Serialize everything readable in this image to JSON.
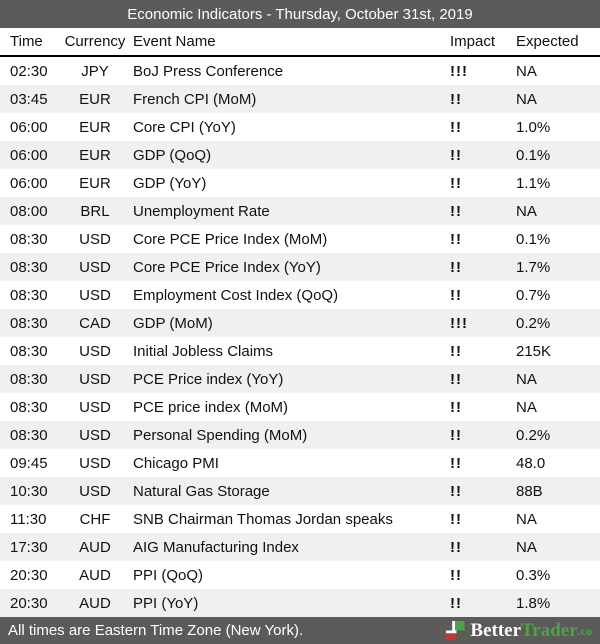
{
  "title_bar": {
    "title": "Economic Indicators - Thursday, October 31st, 2019"
  },
  "table": {
    "columns": [
      "Time",
      "Currency",
      "Event Name",
      "Impact",
      "Expected"
    ],
    "rows": [
      {
        "time": "02:30",
        "currency": "JPY",
        "event": "BoJ Press Conference",
        "impact": "!!!",
        "expected": "NA"
      },
      {
        "time": "03:45",
        "currency": "EUR",
        "event": "French CPI (MoM)",
        "impact": "!!",
        "expected": "NA"
      },
      {
        "time": "06:00",
        "currency": "EUR",
        "event": "Core CPI (YoY)",
        "impact": "!!",
        "expected": "1.0%"
      },
      {
        "time": "06:00",
        "currency": "EUR",
        "event": "GDP (QoQ)",
        "impact": "!!",
        "expected": "0.1%"
      },
      {
        "time": "06:00",
        "currency": "EUR",
        "event": "GDP (YoY)",
        "impact": "!!",
        "expected": "1.1%"
      },
      {
        "time": "08:00",
        "currency": "BRL",
        "event": "Unemployment Rate",
        "impact": "!!",
        "expected": "NA"
      },
      {
        "time": "08:30",
        "currency": "USD",
        "event": "Core PCE Price Index (MoM)",
        "impact": "!!",
        "expected": "0.1%"
      },
      {
        "time": "08:30",
        "currency": "USD",
        "event": "Core PCE Price Index (YoY)",
        "impact": "!!",
        "expected": "1.7%"
      },
      {
        "time": "08:30",
        "currency": "USD",
        "event": "Employment Cost Index (QoQ)",
        "impact": "!!",
        "expected": "0.7%"
      },
      {
        "time": "08:30",
        "currency": "CAD",
        "event": "GDP (MoM)",
        "impact": "!!!",
        "expected": "0.2%"
      },
      {
        "time": "08:30",
        "currency": "USD",
        "event": "Initial Jobless Claims",
        "impact": "!!",
        "expected": "215K"
      },
      {
        "time": "08:30",
        "currency": "USD",
        "event": "PCE Price index (YoY)",
        "impact": "!!",
        "expected": "NA"
      },
      {
        "time": "08:30",
        "currency": "USD",
        "event": "PCE price index (MoM)",
        "impact": "!!",
        "expected": "NA"
      },
      {
        "time": "08:30",
        "currency": "USD",
        "event": "Personal Spending (MoM)",
        "impact": "!!",
        "expected": "0.2%"
      },
      {
        "time": "09:45",
        "currency": "USD",
        "event": "Chicago PMI",
        "impact": "!!",
        "expected": "48.0"
      },
      {
        "time": "10:30",
        "currency": "USD",
        "event": "Natural Gas Storage",
        "impact": "!!",
        "expected": "88B"
      },
      {
        "time": "11:30",
        "currency": "CHF",
        "event": "SNB Chairman Thomas Jordan speaks",
        "impact": "!!",
        "expected": "NA"
      },
      {
        "time": "17:30",
        "currency": "AUD",
        "event": "AIG Manufacturing Index",
        "impact": "!!",
        "expected": "NA"
      },
      {
        "time": "20:30",
        "currency": "AUD",
        "event": "PPI (QoQ)",
        "impact": "!!",
        "expected": "0.3%"
      },
      {
        "time": "20:30",
        "currency": "AUD",
        "event": "PPI (YoY)",
        "impact": "!!",
        "expected": "1.8%"
      }
    ]
  },
  "footer": {
    "note": "All times are Eastern Time Zone (New York).",
    "brand": {
      "part1": "Better",
      "part2": "Trader",
      "suffix": ".co"
    }
  },
  "colors": {
    "bar_background": "#5d5a5a",
    "row_stripe": "#f1f0f0",
    "brand_green": "#4aa348",
    "brand_red": "#c23734"
  }
}
